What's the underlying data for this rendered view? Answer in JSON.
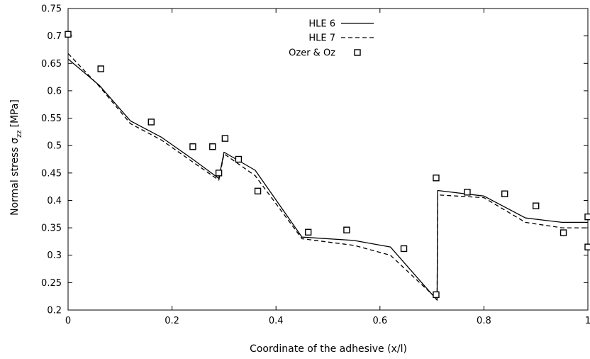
{
  "chart_data": {
    "type": "line",
    "xlabel": "Coordinate of the adhesive (x/l)",
    "ylabel_main": "Normal stress σ",
    "ylabel_sub": "zz",
    "ylabel_unit": "[MPa]",
    "xlim": [
      0,
      1
    ],
    "ylim": [
      0.2,
      0.75
    ],
    "x_ticks": [
      0,
      0.2,
      0.4,
      0.6,
      0.8,
      1
    ],
    "x_tick_labels": [
      "0",
      "0.2",
      "0.4",
      "0.6",
      "0.8",
      "1"
    ],
    "y_ticks": [
      0.2,
      0.25,
      0.3,
      0.35,
      0.4,
      0.45,
      0.5,
      0.55,
      0.6,
      0.65,
      0.7,
      0.75
    ],
    "y_tick_labels": [
      "0.2",
      "0.25",
      "0.3",
      "0.35",
      "0.4",
      "0.45",
      "0.5",
      "0.55",
      "0.6",
      "0.65",
      "0.7",
      "0.75"
    ],
    "grid": false,
    "legend_position": "top-center",
    "series": [
      {
        "name": "HLE 6",
        "style": "solid",
        "color": "#000000",
        "x": [
          0,
          0.06,
          0.12,
          0.18,
          0.24,
          0.29,
          0.3,
          0.36,
          0.45,
          0.55,
          0.62,
          0.71,
          0.711,
          0.8,
          0.88,
          0.95,
          1.0
        ],
        "y": [
          0.658,
          0.61,
          0.545,
          0.515,
          0.475,
          0.44,
          0.488,
          0.455,
          0.333,
          0.327,
          0.315,
          0.218,
          0.418,
          0.408,
          0.368,
          0.36,
          0.36
        ]
      },
      {
        "name": "HLE 7",
        "style": "dashed",
        "color": "#000000",
        "x": [
          0,
          0.06,
          0.12,
          0.18,
          0.24,
          0.29,
          0.3,
          0.36,
          0.45,
          0.55,
          0.62,
          0.71,
          0.711,
          0.8,
          0.88,
          0.95,
          1.0
        ],
        "y": [
          0.668,
          0.608,
          0.54,
          0.51,
          0.47,
          0.437,
          0.485,
          0.445,
          0.33,
          0.318,
          0.3,
          0.22,
          0.41,
          0.405,
          0.36,
          0.35,
          0.35
        ]
      },
      {
        "name": "Ozer & Oz",
        "style": "markers",
        "marker": "open-square",
        "color": "#000000",
        "x": [
          0.0,
          0.063,
          0.16,
          0.24,
          0.278,
          0.29,
          0.302,
          0.328,
          0.365,
          0.462,
          0.536,
          0.646,
          0.708,
          0.708,
          0.768,
          0.84,
          0.9,
          0.953,
          1.0,
          1.0
        ],
        "y": [
          0.703,
          0.64,
          0.543,
          0.498,
          0.498,
          0.45,
          0.513,
          0.475,
          0.417,
          0.342,
          0.346,
          0.312,
          0.441,
          0.228,
          0.415,
          0.412,
          0.39,
          0.341,
          0.37,
          0.315
        ]
      }
    ]
  }
}
